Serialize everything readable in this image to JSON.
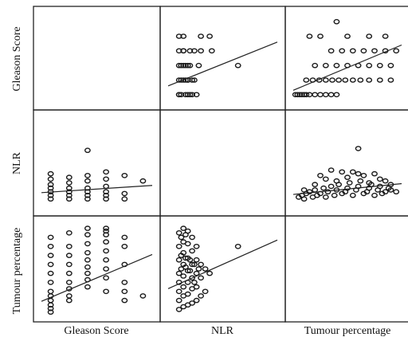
{
  "chart_data": {
    "type": "scatter-matrix",
    "variables": [
      "Gleason Score",
      "NLR",
      "Tumour percentage"
    ],
    "panels": [
      {
        "row": "Gleason Score",
        "col": "NLR",
        "x": [
          0.5,
          0.5,
          0.5,
          0.5,
          0.5,
          0.5,
          0.7,
          0.7,
          0.7,
          0.7,
          0.9,
          0.9,
          0.9,
          1.2,
          1.5,
          1.9,
          0.6,
          0.8,
          1.0,
          1.1,
          1.3,
          0.6,
          0.8,
          0.9,
          1.1,
          1.2,
          0.6,
          0.8,
          1.0,
          1.4,
          0.7,
          1.0,
          1.5,
          2.0,
          3.2
        ],
        "y": [
          6,
          7,
          8,
          9,
          10,
          6,
          7,
          8,
          9,
          10,
          6,
          7,
          8,
          9,
          10,
          10,
          6,
          6,
          6,
          6,
          6,
          7,
          7,
          7,
          7,
          7,
          8,
          8,
          8,
          8,
          9,
          9,
          9,
          9,
          8
        ],
        "fit": {
          "x": [
            0,
            5
          ],
          "y": [
            6.6,
            9.6
          ]
        }
      },
      {
        "row": "Gleason Score",
        "col": "Tumour percentage",
        "x": [
          2,
          4,
          6,
          8,
          10,
          12,
          15,
          20,
          25,
          30,
          35,
          40,
          12,
          18,
          24,
          30,
          36,
          42,
          48,
          55,
          62,
          70,
          80,
          90,
          20,
          30,
          40,
          50,
          60,
          70,
          80,
          90,
          35,
          45,
          55,
          65,
          75,
          85,
          95,
          15,
          25,
          50,
          70,
          85,
          40
        ],
        "y": [
          6,
          6,
          6,
          6,
          6,
          6,
          6,
          6,
          6,
          6,
          6,
          6,
          7,
          7,
          7,
          7,
          7,
          7,
          7,
          7,
          7,
          7,
          7,
          7,
          8,
          8,
          8,
          8,
          8,
          8,
          8,
          8,
          9,
          9,
          9,
          9,
          9,
          9,
          9,
          10,
          10,
          10,
          10,
          10,
          11
        ],
        "fit": {
          "x": [
            0,
            100
          ],
          "y": [
            6.3,
            9.4
          ]
        }
      },
      {
        "row": "NLR",
        "col": "Gleason Score",
        "x": [
          6,
          6,
          6,
          6,
          6,
          6,
          6,
          7,
          7,
          7,
          7,
          7,
          7,
          8,
          8,
          8,
          8,
          8,
          8,
          9,
          9,
          9,
          9,
          9,
          9,
          10,
          10,
          10,
          11,
          8
        ],
        "y": [
          0.5,
          0.7,
          0.9,
          1.1,
          1.3,
          1.6,
          1.9,
          0.5,
          0.7,
          0.9,
          1.1,
          1.4,
          1.7,
          0.5,
          0.7,
          0.9,
          1.1,
          1.5,
          1.8,
          0.5,
          0.7,
          0.9,
          1.2,
          1.6,
          2.0,
          0.5,
          0.8,
          1.8,
          1.5,
          3.2
        ],
        "fit": {
          "x": [
            5.5,
            11.5
          ],
          "y": [
            0.85,
            1.25
          ]
        }
      },
      {
        "row": "NLR",
        "col": "Tumour percentage",
        "x": [
          5,
          8,
          10,
          12,
          15,
          18,
          20,
          22,
          25,
          28,
          30,
          32,
          35,
          38,
          40,
          42,
          45,
          48,
          50,
          52,
          55,
          58,
          60,
          62,
          65,
          68,
          70,
          72,
          75,
          78,
          80,
          82,
          85,
          88,
          90,
          95,
          10,
          20,
          30,
          40,
          50,
          60,
          70,
          80,
          90,
          25,
          45,
          65,
          85,
          35,
          55,
          75,
          60
        ],
        "y": [
          0.6,
          0.7,
          0.5,
          0.8,
          0.9,
          0.6,
          1.0,
          0.7,
          0.8,
          1.1,
          0.6,
          0.9,
          1.2,
          0.7,
          1.0,
          1.3,
          0.8,
          0.9,
          1.1,
          1.4,
          0.7,
          1.0,
          1.2,
          1.5,
          0.8,
          0.9,
          1.1,
          1.3,
          0.7,
          1.0,
          1.2,
          0.8,
          0.9,
          1.1,
          1.0,
          0.9,
          1.0,
          1.3,
          1.6,
          1.5,
          1.7,
          1.9,
          1.4,
          1.6,
          1.3,
          1.8,
          2.0,
          1.8,
          1.5,
          2.1,
          2.0,
          1.9,
          3.3
        ],
        "fit": {
          "x": [
            0,
            100
          ],
          "y": [
            0.75,
            1.35
          ]
        }
      },
      {
        "row": "Tumour percentage",
        "col": "Gleason Score",
        "x": [
          6,
          6,
          6,
          6,
          6,
          6,
          6,
          6,
          6,
          6,
          6,
          6,
          7,
          7,
          7,
          7,
          7,
          7,
          7,
          7,
          7,
          8,
          8,
          8,
          8,
          8,
          8,
          8,
          8,
          8,
          9,
          9,
          9,
          9,
          9,
          9,
          9,
          9,
          9,
          10,
          10,
          10,
          10,
          10,
          10,
          11
        ],
        "y": [
          2,
          6,
          10,
          15,
          20,
          25,
          35,
          45,
          55,
          65,
          75,
          85,
          15,
          20,
          28,
          35,
          45,
          55,
          65,
          75,
          90,
          30,
          38,
          45,
          52,
          60,
          68,
          78,
          88,
          95,
          25,
          40,
          50,
          60,
          70,
          80,
          88,
          92,
          95,
          15,
          25,
          35,
          55,
          75,
          85,
          20
        ],
        "fit": {
          "x": [
            5.5,
            11.5
          ],
          "y": [
            14,
            66
          ]
        }
      },
      {
        "row": "Tumour percentage",
        "col": "NLR",
        "x": [
          0.5,
          0.5,
          0.5,
          0.5,
          0.5,
          0.5,
          0.5,
          0.5,
          0.7,
          0.7,
          0.7,
          0.7,
          0.7,
          0.7,
          0.7,
          0.7,
          0.9,
          0.9,
          0.9,
          0.9,
          0.9,
          0.9,
          0.9,
          1.1,
          1.1,
          1.1,
          1.1,
          1.1,
          1.1,
          1.3,
          1.3,
          1.3,
          1.3,
          1.3,
          1.5,
          1.5,
          1.5,
          1.7,
          1.7,
          1.9,
          0.6,
          0.8,
          1.0,
          1.2,
          1.4,
          0.6,
          0.8,
          1.0,
          0.6,
          0.8,
          1.2,
          3.2
        ],
        "y": [
          5,
          15,
          25,
          35,
          45,
          60,
          75,
          90,
          8,
          20,
          30,
          42,
          55,
          68,
          80,
          95,
          10,
          22,
          35,
          48,
          62,
          78,
          92,
          12,
          28,
          40,
          55,
          70,
          85,
          15,
          30,
          45,
          60,
          75,
          20,
          40,
          55,
          25,
          50,
          45,
          50,
          52,
          48,
          55,
          50,
          65,
          62,
          60,
          85,
          88,
          35,
          75
        ],
        "fit": {
          "x": [
            0,
            5
          ],
          "y": [
            28,
            82
          ]
        }
      }
    ]
  },
  "labels": {
    "rows": [
      "Gleason Score",
      "NLR",
      "Tumour percentage"
    ],
    "cols": [
      "Gleason Score",
      "NLR",
      "Tumour percentage"
    ]
  },
  "style": {
    "marker_color": "#1a1a1a",
    "line_color": "#222222",
    "frame_color": "#222222"
  }
}
